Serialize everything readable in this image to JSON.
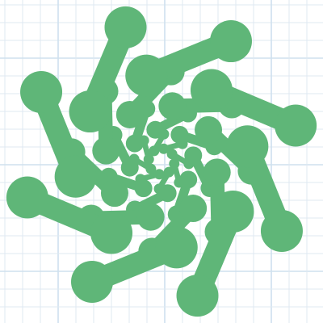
{
  "colors": {
    "background": "#ffffff",
    "grid_line": "#dfe9f2",
    "grid_line_major": "#cfe0ee",
    "blob": "#5fb678"
  },
  "pattern": {
    "name": "spiral-dumbbell-motif",
    "rings": 4,
    "dumbbells_per_ring": 8
  }
}
